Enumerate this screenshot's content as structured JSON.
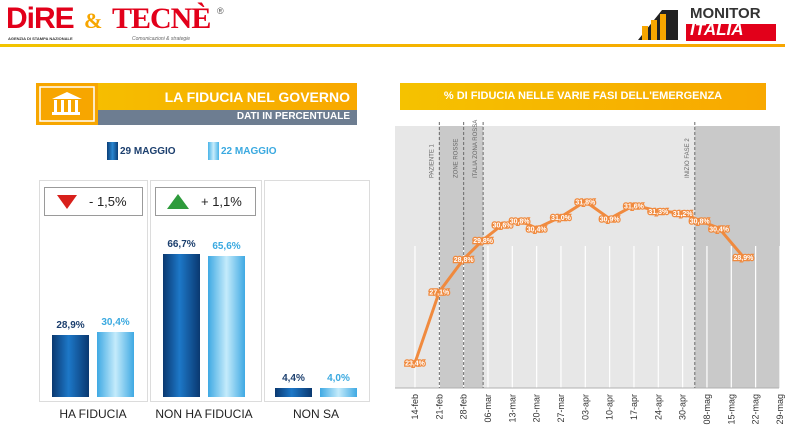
{
  "header": {
    "logo_left": "DiRE",
    "logo_left_sub": "AGENZIA DI STAMPA NAZIONALE",
    "amp": "&",
    "logo_mid": "TECNÈ",
    "logo_mid_sub": "Comunicazioni & strategie",
    "logo_mid_reg": "®",
    "logo_right_1": "MONITOR",
    "logo_right_2": "ITALIA"
  },
  "left_panel": {
    "title": "LA FIDUCIA NEL GOVERNO",
    "subtitle": "DATI IN PERCENTUALE",
    "legend": [
      "29 MAGGIO",
      "22 MAGGIO"
    ],
    "changes": [
      {
        "text": "- 1,5%",
        "direction": "down"
      },
      {
        "text": "+ 1,1%",
        "direction": "up"
      }
    ]
  },
  "right_panel": {
    "title": "% DI FIDUCIA NELLE VARIE FASI DELL'EMERGENZA",
    "phase_labels": [
      "PAZIENTE 1",
      "ZONE ROSSE",
      "ITALIA ZONA ROSSA",
      "INIZIO FASE 2"
    ]
  },
  "colors": {
    "accent": "#f5b800",
    "bar_dark": "#0d4e8f",
    "bar_light": "#63c2ee",
    "line": "#f08a3e",
    "down": "#d8201b",
    "up": "#2e9b3c",
    "band_gray": "#c9c9c9"
  },
  "chart_data": [
    {
      "type": "bar",
      "categories": [
        "HA FIDUCIA",
        "NON HA FIDUCIA",
        "NON SA"
      ],
      "series": [
        {
          "name": "29 MAGGIO",
          "values": [
            28.9,
            66.7,
            4.4
          ],
          "labels": [
            "28,9%",
            "66,7%",
            "4,4%"
          ]
        },
        {
          "name": "22 MAGGIO",
          "values": [
            30.4,
            65.6,
            4.0
          ],
          "labels": [
            "30,4%",
            "65,6%",
            "4,0%"
          ]
        }
      ],
      "ylim": [
        0,
        70
      ]
    },
    {
      "type": "line",
      "title": "% DI FIDUCIA NELLE VARIE FASI DELL'EMERGENZA",
      "x": [
        "14-feb",
        "21-feb",
        "28-feb",
        "06-mar",
        "13-mar",
        "20-mar",
        "27-mar",
        "03-apr",
        "10-apr",
        "17-apr",
        "24-apr",
        "30-apr",
        "08-mag",
        "15-mag",
        "22-mag",
        "29-mag"
      ],
      "point_x": [
        0,
        1,
        2,
        2.8,
        3.6,
        4.3,
        5,
        6,
        7,
        8,
        9,
        10,
        11,
        11.7,
        12.5,
        13.5
      ],
      "values": [
        23.4,
        27.1,
        28.8,
        29.8,
        30.6,
        30.8,
        30.4,
        31.0,
        31.8,
        30.9,
        31.6,
        31.3,
        31.2,
        30.8,
        30.4,
        28.9
      ],
      "labels": [
        "23,4%",
        "27,1%",
        "28,8%",
        "29,8%",
        "30,6%",
        "30,8%",
        "30,4%",
        "31,0%",
        "31,8%",
        "30,9%",
        "31,6%",
        "31,3%",
        "31,2%",
        "30,8%",
        "30,4%",
        "28,9%"
      ],
      "phase_x": [
        1,
        2,
        2.8,
        11.5
      ],
      "gray_band_x": [
        [
          1,
          2.8
        ],
        [
          11.5,
          15
        ]
      ],
      "grid": true
    }
  ]
}
